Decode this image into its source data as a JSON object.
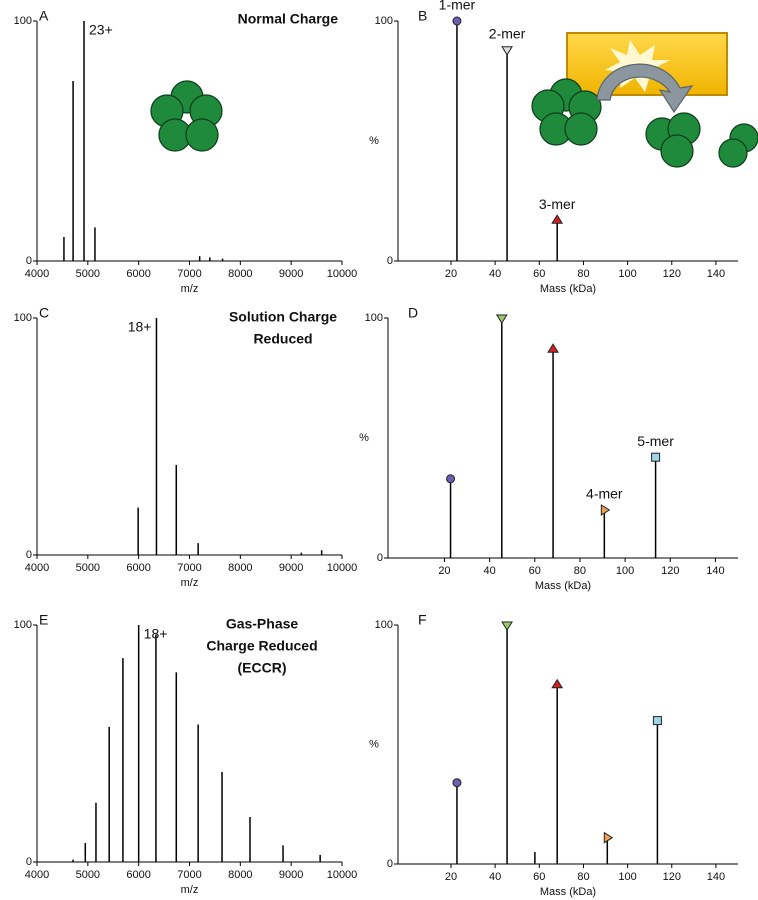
{
  "chart_data": [
    {
      "type": "stick",
      "panel": "A",
      "title": [
        "Normal Charge"
      ],
      "annotation": "23+",
      "xlabel": "m/z",
      "xlim": [
        4000,
        10000
      ],
      "xticks": [
        4000,
        5000,
        6000,
        7000,
        8000,
        9000,
        10000
      ],
      "ylim": [
        0,
        100
      ],
      "yticks": [
        0,
        100
      ],
      "color": "#000000",
      "x": [
        4530,
        4710,
        4925,
        5140,
        7200,
        7400,
        7650
      ],
      "values": [
        10,
        75,
        100,
        14,
        2,
        1.5,
        1
      ]
    },
    {
      "type": "stick",
      "panel": "B",
      "ylabel": "%",
      "xlabel": "Mass (kDa)",
      "xlim": [
        -4,
        150
      ],
      "xticks": [
        20,
        40,
        60,
        80,
        100,
        120,
        140
      ],
      "ylim": [
        0,
        100
      ],
      "yticks": [
        0,
        100
      ],
      "color": "#000000",
      "x": [
        22.7,
        45.4,
        68.1
      ],
      "values": [
        100,
        88,
        17
      ],
      "labels": [
        "1-mer",
        "2-mer",
        "3-mer"
      ],
      "markers": [
        "circle",
        "down",
        "up"
      ],
      "marker_colors": [
        "#6a5fb0",
        "#dddddd",
        "#d62020"
      ]
    },
    {
      "type": "stick",
      "panel": "C",
      "title": [
        "Solution Charge",
        "Reduced"
      ],
      "annotation": "18+",
      "xlabel": "m/z",
      "xlim": [
        4000,
        10000
      ],
      "xticks": [
        4000,
        5000,
        6000,
        7000,
        8000,
        9000,
        10000
      ],
      "ylim": [
        0,
        100
      ],
      "yticks": [
        0,
        100
      ],
      "color": "#000000",
      "x": [
        5990,
        6350,
        6740,
        7170,
        9200,
        9600
      ],
      "values": [
        20,
        100,
        38,
        5,
        1,
        2
      ]
    },
    {
      "type": "stick",
      "panel": "D",
      "ylabel": "%",
      "xlabel": "Mass (kDa)",
      "xlim": [
        -5,
        150
      ],
      "xticks": [
        20,
        40,
        60,
        80,
        100,
        120,
        140
      ],
      "ylim": [
        0,
        100
      ],
      "yticks": [
        0,
        100
      ],
      "color": "#000000",
      "x": [
        22.7,
        45.4,
        68.1,
        90.8,
        113.5
      ],
      "values": [
        33,
        100,
        87,
        20,
        42
      ],
      "labels": [
        null,
        null,
        null,
        "4-mer",
        "5-mer"
      ],
      "markers": [
        "circle",
        "down",
        "up",
        "right",
        "square"
      ],
      "marker_colors": [
        "#6a5fb0",
        "#9ccc6a",
        "#d62020",
        "#f0a050",
        "#9fd3e6"
      ]
    },
    {
      "type": "stick",
      "panel": "E",
      "title": [
        "Gas-Phase",
        "Charge Reduced",
        "(ECCR)"
      ],
      "annotation": "18+",
      "xlabel": "m/z",
      "xlim": [
        4000,
        10000
      ],
      "xticks": [
        4000,
        5000,
        6000,
        7000,
        8000,
        9000,
        10000
      ],
      "ylim": [
        0,
        100
      ],
      "yticks": [
        0,
        100
      ],
      "color": "#000000",
      "x": [
        4710,
        4950,
        5160,
        5420,
        5690,
        6000,
        6340,
        6740,
        7170,
        7640,
        8190,
        8840,
        9570
      ],
      "values": [
        1,
        8,
        25,
        57,
        86,
        100,
        96,
        80,
        58,
        38,
        19,
        7,
        3
      ]
    },
    {
      "type": "stick",
      "panel": "F",
      "ylabel": "%",
      "xlabel": "Mass (kDa)",
      "xlim": [
        -4,
        150
      ],
      "xticks": [
        20,
        40,
        60,
        80,
        100,
        120,
        140
      ],
      "ylim": [
        0,
        100
      ],
      "yticks": [
        0,
        100
      ],
      "color": "#000000",
      "x": [
        22.7,
        45.4,
        58,
        68.1,
        90.8,
        113.5
      ],
      "values": [
        34,
        100,
        5,
        75,
        11,
        60
      ],
      "labels": [
        null,
        null,
        null,
        null,
        null,
        null
      ],
      "markers": [
        "circle",
        "down",
        null,
        "up",
        "right",
        "square"
      ],
      "marker_colors": [
        "#6a5fb0",
        "#9ccc6a",
        null,
        "#d62020",
        "#f0a050",
        "#9fd3e6"
      ]
    }
  ]
}
